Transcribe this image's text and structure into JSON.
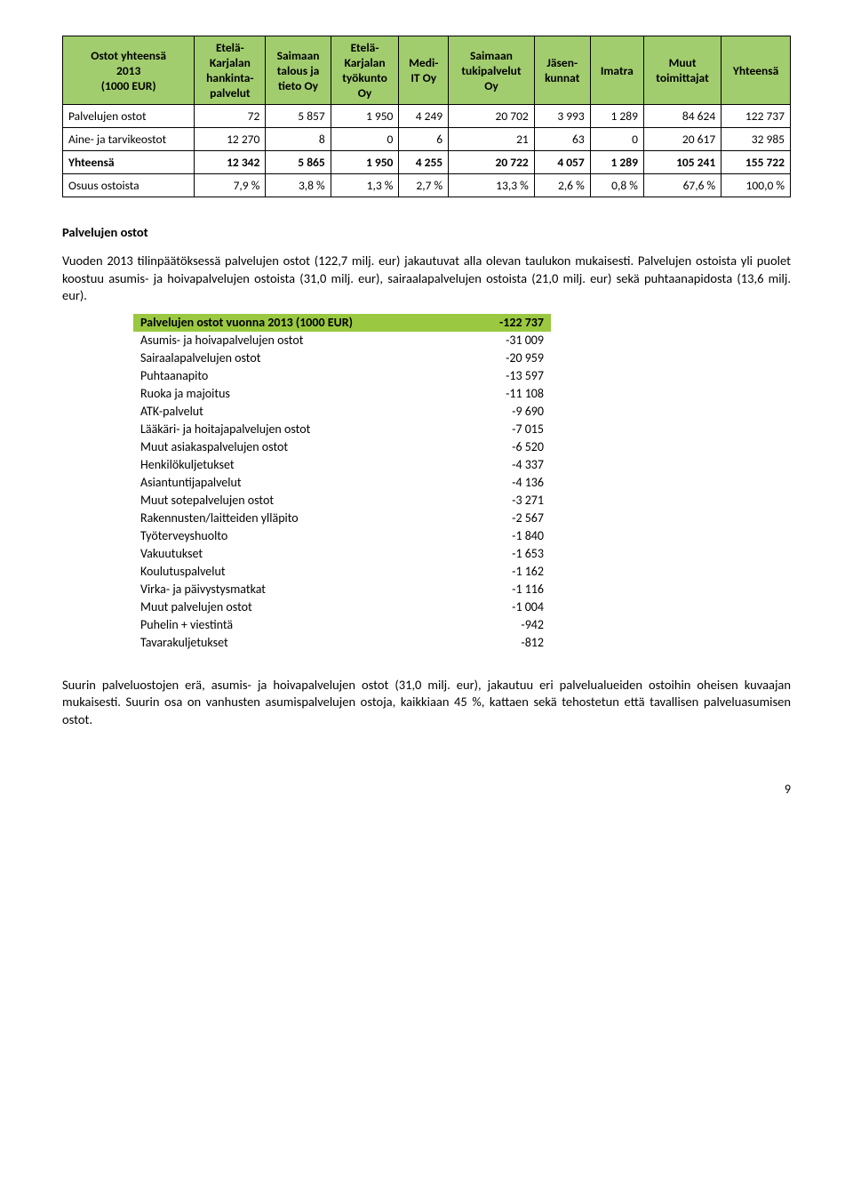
{
  "table1": {
    "headers": [
      "Ostot yhteensä\n2013\n(1000 EUR)",
      "Etelä-\nKarjalan\nhankinta-\npalvelut",
      "Saimaan\ntalous ja\ntieto Oy",
      "Etelä-\nKarjalan\ntyökunto\nOy",
      "Medi-\nIT Oy",
      "Saimaan\ntukipalvelut\nOy",
      "Jäsen-\nkunnat",
      "Imatra",
      "Muut\ntoimittajat",
      "Yhteensä"
    ],
    "rows": [
      {
        "label": "Palvelujen ostot",
        "cells": [
          "72",
          "5 857",
          "1 950",
          "4 249",
          "20 702",
          "3 993",
          "1 289",
          "84 624",
          "122 737"
        ]
      },
      {
        "label": "Aine- ja tarvikeostot",
        "cells": [
          "12 270",
          "8",
          "0",
          "6",
          "21",
          "63",
          "0",
          "20 617",
          "32 985"
        ]
      },
      {
        "label": "Yhteensä",
        "bold": true,
        "cells": [
          "12 342",
          "5 865",
          "1 950",
          "4 255",
          "20 722",
          "4 057",
          "1 289",
          "105 241",
          "155 722"
        ]
      },
      {
        "label": "Osuus ostoista",
        "cells": [
          "7,9 %",
          "3,8 %",
          "1,3 %",
          "2,7 %",
          "13,3 %",
          "2,6 %",
          "0,8 %",
          "67,6 %",
          "100,0 %"
        ]
      }
    ]
  },
  "section_title": "Palvelujen ostot",
  "para1": "Vuoden 2013 tilinpäätöksessä palvelujen ostot (122,7 milj. eur) jakautuvat alla olevan taulukon mukaisesti. Palvelujen ostoista yli puolet koostuu asumis- ja hoivapalvelujen ostoista (31,0 milj. eur), sairaalapalvelujen ostoista (21,0 milj. eur) sekä puhtaanapidosta (13,6 milj. eur).",
  "table2": {
    "header_label": "Palvelujen ostot vuonna 2013 (1000 EUR)",
    "header_value": "-122 737",
    "rows": [
      [
        "Asumis- ja hoivapalvelujen ostot",
        "-31 009"
      ],
      [
        "Sairaalapalvelujen ostot",
        "-20 959"
      ],
      [
        "Puhtaanapito",
        "-13 597"
      ],
      [
        "Ruoka ja majoitus",
        "-11 108"
      ],
      [
        "ATK-palvelut",
        "-9 690"
      ],
      [
        "Lääkäri- ja hoitajapalvelujen ostot",
        "-7 015"
      ],
      [
        "Muut asiakaspalvelujen ostot",
        "-6 520"
      ],
      [
        "Henkilökuljetukset",
        "-4 337"
      ],
      [
        "Asiantuntijapalvelut",
        "-4 136"
      ],
      [
        "Muut sotepalvelujen ostot",
        "-3 271"
      ],
      [
        "Rakennusten/laitteiden ylläpito",
        "-2 567"
      ],
      [
        "Työterveyshuolto",
        "-1 840"
      ],
      [
        "Vakuutukset",
        "-1 653"
      ],
      [
        "Koulutuspalvelut",
        "-1 162"
      ],
      [
        "Virka- ja päivystysmatkat",
        "-1 116"
      ],
      [
        "Muut palvelujen ostot",
        "-1 004"
      ],
      [
        "Puhelin + viestintä",
        "-942"
      ],
      [
        "Tavarakuljetukset",
        "-812"
      ]
    ]
  },
  "para2": "Suurin palveluostojen erä, asumis- ja hoivapalvelujen ostot (31,0 milj. eur), jakautuu eri palvelualueiden ostoihin oheisen kuvaajan mukaisesti. Suurin osa on vanhusten asumispalvelujen ostoja, kaikkiaan 45 %, kattaen sekä tehostetun että tavallisen palveluasumisen ostot.",
  "page_number": "9",
  "colors": {
    "header_bg": "#a2cd6e",
    "t2_header_bg": "#9ac840"
  }
}
